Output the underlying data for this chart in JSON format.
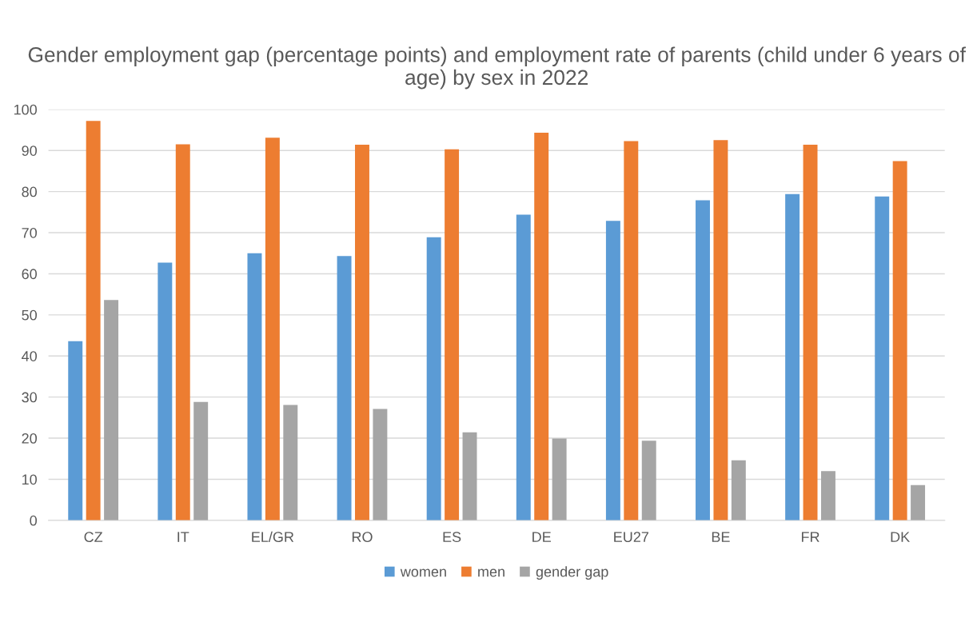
{
  "chart_data": {
    "type": "bar",
    "title": "Gender employment gap (percentage points) and employment rate of parents (child under 6 years of age) by sex in 2022",
    "categories": [
      "CZ",
      "IT",
      "EL/GR",
      "RO",
      "ES",
      "DE",
      "EU27",
      "BE",
      "FR",
      "DK"
    ],
    "series": [
      {
        "name": "women",
        "color": "#5b9bd5",
        "values": [
          43.6,
          62.7,
          65.0,
          64.3,
          68.9,
          74.4,
          72.9,
          77.9,
          79.4,
          78.8
        ]
      },
      {
        "name": "men",
        "color": "#ed7d31",
        "values": [
          97.2,
          91.5,
          93.1,
          91.4,
          90.3,
          94.3,
          92.3,
          92.5,
          91.4,
          87.4
        ]
      },
      {
        "name": "gender gap",
        "color": "#a5a5a5",
        "values": [
          53.6,
          28.8,
          28.1,
          27.1,
          21.4,
          19.9,
          19.4,
          14.6,
          12.0,
          8.6
        ]
      }
    ],
    "ylim": [
      0,
      100
    ],
    "yticks": [
      0,
      10,
      20,
      30,
      40,
      50,
      60,
      70,
      80,
      90,
      100
    ],
    "grid": "y",
    "legend": "bottom"
  }
}
